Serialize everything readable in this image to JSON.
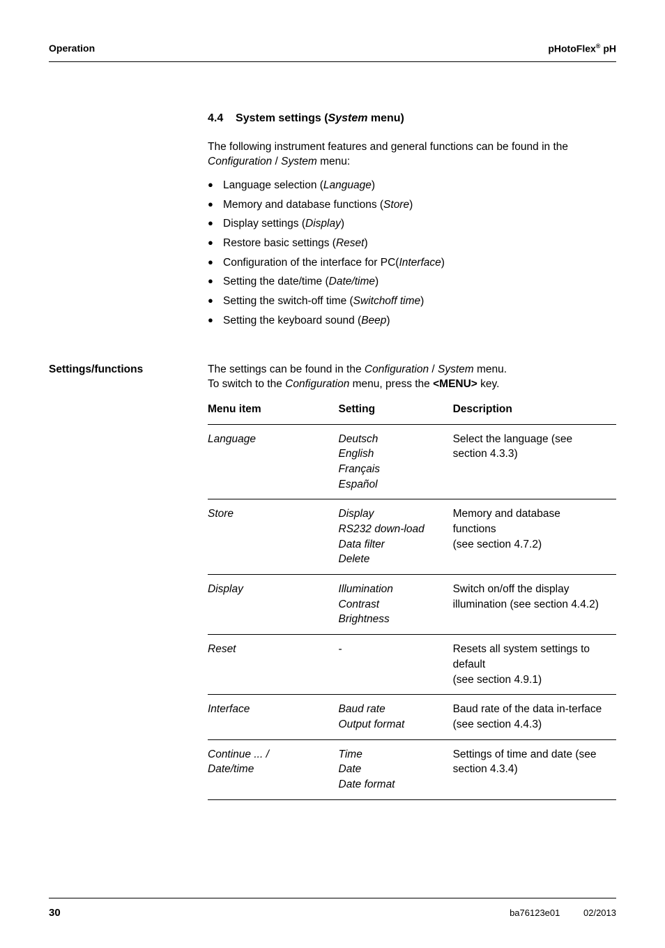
{
  "header": {
    "left": "Operation",
    "right_pre": "pHotoFlex",
    "right_sup": "®",
    "right_post": " pH"
  },
  "section": {
    "number": "4.4",
    "title_pre": "System settings (",
    "title_ital": "System",
    "title_post": " menu)"
  },
  "intro": {
    "line1_pre": "The following instrument features and general functions can be found in the ",
    "line1_it1": "Configuration",
    "line1_mid": " / ",
    "line1_it2": "System",
    "line1_post": " menu:"
  },
  "bullets": [
    {
      "pre": "Language selection (",
      "it": "Language",
      "post": ")"
    },
    {
      "pre": "Memory and database functions (",
      "it": "Store",
      "post": ")"
    },
    {
      "pre": "Display settings (",
      "it": "Display",
      "post": ")"
    },
    {
      "pre": "Restore basic settings (",
      "it": "Reset",
      "post": ")"
    },
    {
      "pre": "Configuration of the interface for PC(",
      "it": "Interface",
      "post": ")"
    },
    {
      "pre": "Setting the date/time (",
      "it": "Date/time",
      "post": ")"
    },
    {
      "pre": "Setting the switch-off time (",
      "it": "Switchoff time",
      "post": ")"
    },
    {
      "pre": "Setting the keyboard sound (",
      "it": "Beep",
      "post": ")"
    }
  ],
  "settings": {
    "side_label": "Settings/functions",
    "line1_pre": "The settings can be found in the ",
    "line1_it1": "Configuration",
    "line1_mid": " / ",
    "line1_it2": "System",
    "line1_post": " menu.",
    "line2_pre": "To switch to the ",
    "line2_it": "Configuration",
    "line2_mid": " menu, press the ",
    "line2_bold": "<MENU>",
    "line2_post": " key."
  },
  "table": {
    "headers": {
      "c1": "Menu item",
      "c2": "Setting",
      "c3": "Description"
    },
    "rows": [
      {
        "c1": "Language",
        "c2": [
          "Deutsch",
          "English",
          "Français",
          "Español"
        ],
        "c3": "Select the language (see section 4.3.3)"
      },
      {
        "c1": "Store",
        "c2": [
          "Display",
          "RS232 down-load",
          "Data filter",
          "Delete"
        ],
        "c3": "Memory and database functions\n(see section 4.7.2)"
      },
      {
        "c1": "Display",
        "c2": [
          "Illumination",
          "Contrast",
          "Brightness"
        ],
        "c3": "Switch on/off the display illumination (see section 4.4.2)"
      },
      {
        "c1": "Reset",
        "c2": [
          "-"
        ],
        "c3": "Resets all system settings to default\n(see section 4.9.1)",
        "c2_roman": true
      },
      {
        "c1": "Interface",
        "c2": [
          "Baud rate",
          "Output format"
        ],
        "c3": "Baud rate of the data in-terface\n(see section 4.4.3)"
      },
      {
        "c1_lines": [
          "Continue ... /",
          " Date/time"
        ],
        "c2": [
          "Time",
          "Date",
          "Date format"
        ],
        "c3": "Settings of time and date (see section 4.3.4)"
      }
    ]
  },
  "footer": {
    "page": "30",
    "doc": "ba76123e01",
    "date": "02/2013"
  }
}
